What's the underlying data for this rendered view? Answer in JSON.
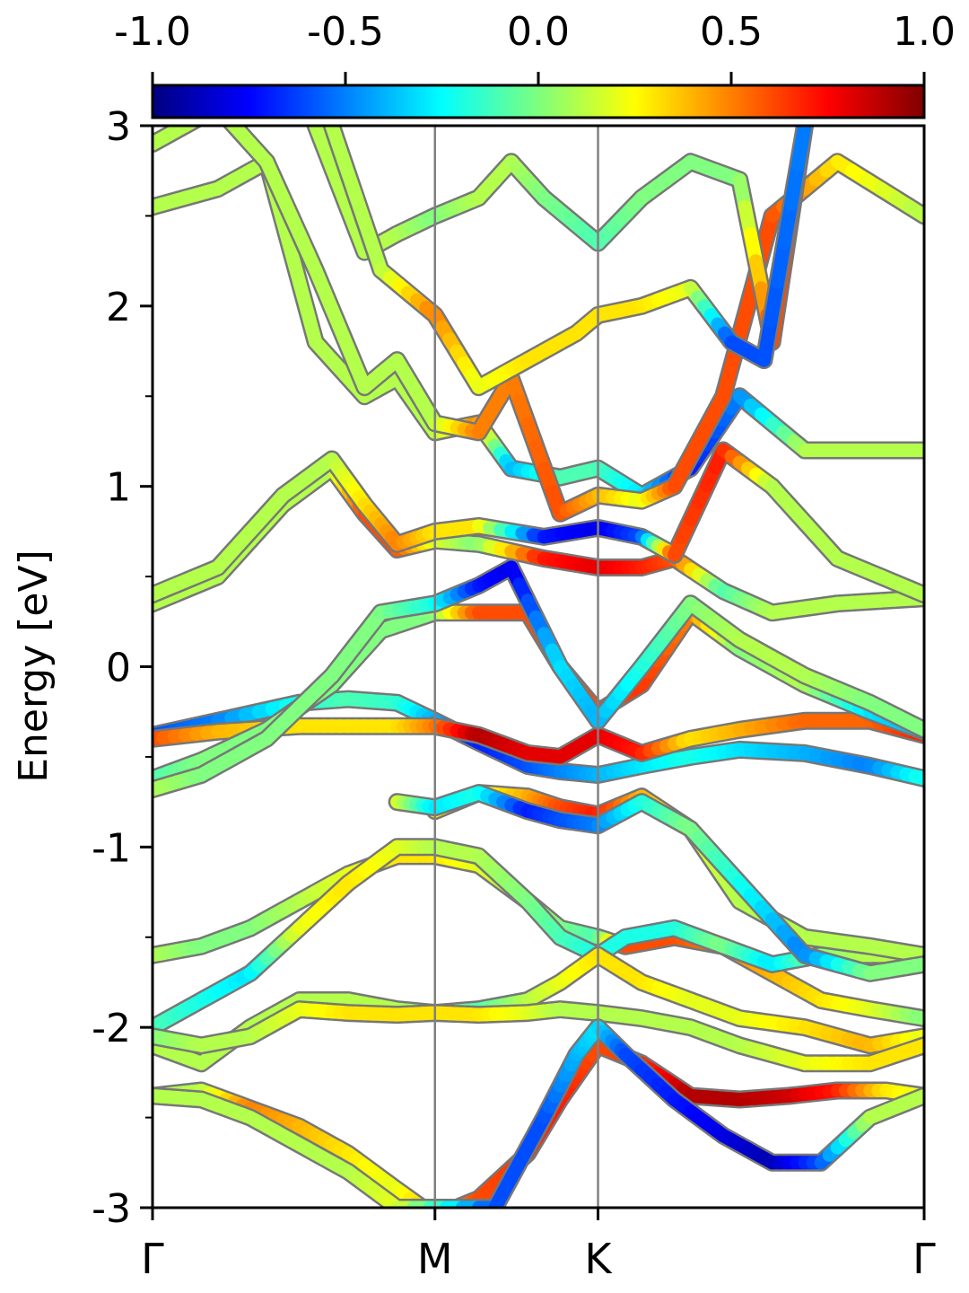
{
  "chart_data": {
    "type": "line",
    "ylabel": "Energy [eV]",
    "ylim": [
      -3,
      3
    ],
    "yticks": [
      {
        "value": 3,
        "label": "3"
      },
      {
        "value": 2,
        "label": "2"
      },
      {
        "value": 1,
        "label": "1"
      },
      {
        "value": 0,
        "label": "0"
      },
      {
        "value": -1,
        "label": "-1"
      },
      {
        "value": -2,
        "label": "-2"
      },
      {
        "value": -3,
        "label": "-3"
      }
    ],
    "yminor_step": 0.5,
    "xlim": [
      0,
      4.732
    ],
    "kpoints": [
      {
        "label": "Γ",
        "x": 0
      },
      {
        "label": "M",
        "x": 1.732
      },
      {
        "label": "K",
        "x": 2.732
      },
      {
        "label": "Γ",
        "x": 4.732
      }
    ],
    "colorbar": {
      "min": -1.0,
      "max": 1.0,
      "colormap": "jet",
      "ticks": [
        {
          "value": -1.0,
          "label": "-1.0"
        },
        {
          "value": -0.5,
          "label": "-0.5"
        },
        {
          "value": 0.0,
          "label": "0.0"
        },
        {
          "value": 0.5,
          "label": "0.5"
        },
        {
          "value": 1.0,
          "label": "1.0"
        }
      ]
    },
    "series": [
      {
        "x": [
          0,
          0.4,
          0.9,
          1.2,
          1.5,
          1.732,
          2.0,
          2.3,
          2.5,
          2.732,
          3.0,
          3.3,
          3.6,
          4.0,
          4.4,
          4.732
        ],
        "y": [
          -0.38,
          -0.3,
          -0.2,
          -0.18,
          -0.2,
          -0.3,
          -0.42,
          -0.55,
          -0.58,
          -0.6,
          -0.55,
          -0.5,
          -0.46,
          -0.48,
          -0.55,
          -0.62
        ],
        "c": [
          -0.6,
          -0.5,
          -0.2,
          -0.1,
          -0.15,
          -0.4,
          -0.7,
          -0.6,
          -0.5,
          -0.4,
          -0.3,
          -0.2,
          -0.3,
          -0.4,
          -0.5,
          -0.2
        ]
      },
      {
        "x": [
          0,
          0.4,
          0.9,
          1.2,
          1.5,
          1.732,
          2.0,
          2.3,
          2.5,
          2.732,
          3.0,
          3.3,
          3.6,
          4.0,
          4.4,
          4.732
        ],
        "y": [
          -0.4,
          -0.36,
          -0.33,
          -0.33,
          -0.33,
          -0.33,
          -0.38,
          -0.48,
          -0.5,
          -0.38,
          -0.48,
          -0.4,
          -0.35,
          -0.3,
          -0.3,
          -0.38
        ],
        "c": [
          0.6,
          0.4,
          0.3,
          0.3,
          0.3,
          0.5,
          0.9,
          0.8,
          0.8,
          0.8,
          0.7,
          0.3,
          0.4,
          0.55,
          0.55,
          0.7
        ]
      },
      {
        "x": [
          0,
          0.3,
          0.7,
          1.1,
          1.4,
          1.732,
          2.0,
          2.3,
          2.5,
          2.732,
          3.0,
          3.3,
          3.6,
          4.0,
          4.4,
          4.732
        ],
        "y": [
          -0.62,
          -0.52,
          -0.35,
          -0.1,
          0.2,
          0.3,
          0.3,
          0.3,
          0.0,
          -0.25,
          -0.1,
          0.3,
          0.1,
          -0.1,
          -0.25,
          -0.36
        ],
        "c": [
          -0.1,
          0.0,
          0.0,
          0.0,
          0.0,
          0.0,
          0.6,
          0.6,
          0.6,
          0.6,
          0.65,
          0.5,
          0.0,
          0.1,
          -0.3,
          -0.4
        ]
      },
      {
        "x": [
          0,
          0.3,
          0.7,
          1.1,
          1.4,
          1.732,
          2.0,
          2.2,
          2.5,
          2.732,
          3.0,
          3.3,
          3.6,
          4.0,
          4.4,
          4.732
        ],
        "y": [
          -0.68,
          -0.6,
          -0.4,
          -0.05,
          0.3,
          0.35,
          0.45,
          0.55,
          0.0,
          -0.3,
          0.0,
          0.35,
          0.15,
          -0.05,
          -0.2,
          -0.35
        ],
        "c": [
          0.1,
          0.0,
          0.0,
          0.0,
          0.0,
          -0.2,
          -0.7,
          -0.8,
          -0.3,
          -0.4,
          -0.2,
          0.0,
          0.1,
          0.1,
          0.0,
          0.0
        ]
      },
      {
        "x": [
          0,
          0.4,
          0.8,
          1.1,
          1.3,
          1.5,
          1.732,
          2.0,
          2.4,
          2.732,
          3.0,
          3.2,
          3.5,
          3.8,
          4.2,
          4.732
        ],
        "y": [
          0.35,
          0.5,
          0.9,
          1.1,
          0.85,
          0.65,
          0.7,
          0.68,
          0.6,
          0.55,
          0.55,
          0.6,
          0.42,
          0.3,
          0.35,
          0.38
        ],
        "c": [
          0.1,
          0.1,
          0.1,
          0.1,
          0.6,
          0.6,
          0.2,
          0.0,
          0.7,
          0.8,
          0.7,
          0.6,
          -0.1,
          0.1,
          0.1,
          0.1
        ]
      },
      {
        "x": [
          0,
          0.4,
          0.8,
          1.1,
          1.3,
          1.5,
          1.732,
          2.0,
          2.4,
          2.732,
          3.0,
          3.2,
          3.5,
          3.8,
          4.2,
          4.732
        ],
        "y": [
          0.4,
          0.55,
          0.95,
          1.15,
          0.9,
          0.68,
          0.75,
          0.78,
          0.72,
          0.77,
          0.72,
          0.62,
          1.2,
          1.0,
          0.6,
          0.4
        ],
        "c": [
          0.1,
          0.1,
          0.1,
          0.1,
          0.3,
          0.5,
          0.3,
          0.3,
          -0.7,
          -0.8,
          -0.6,
          0.6,
          0.7,
          0.1,
          0.1,
          0.1
        ]
      },
      {
        "x": [
          0,
          0.4,
          0.7,
          1.0,
          1.3,
          1.5,
          1.732,
          2.0,
          2.2,
          2.5,
          2.732,
          3.0,
          3.3,
          3.6,
          4.0,
          4.732
        ],
        "y": [
          2.55,
          2.65,
          2.8,
          1.8,
          1.5,
          1.6,
          1.3,
          1.35,
          1.1,
          1.05,
          1.1,
          0.95,
          1.1,
          1.5,
          1.2,
          1.2
        ],
        "c": [
          0.1,
          0.1,
          0.1,
          0.1,
          0.1,
          0.1,
          0.1,
          0.5,
          -0.4,
          -0.1,
          -0.1,
          -0.3,
          -0.7,
          -0.5,
          0.1,
          0.1
        ]
      },
      {
        "x": [
          0,
          0.4,
          0.7,
          1.0,
          1.3,
          1.5,
          1.732,
          2.0,
          2.2,
          2.5,
          2.732,
          3.0,
          3.2,
          3.5,
          3.8,
          4.2,
          4.732
        ],
        "y": [
          2.9,
          3.1,
          2.8,
          2.2,
          1.55,
          1.7,
          1.35,
          1.3,
          1.6,
          0.85,
          0.95,
          0.92,
          1.0,
          1.5,
          2.5,
          2.8,
          2.5
        ],
        "c": [
          0.1,
          0.1,
          0.1,
          0.1,
          0.1,
          0.1,
          0.1,
          0.5,
          0.5,
          0.6,
          0.4,
          0.2,
          0.6,
          0.6,
          0.6,
          0.3,
          0.1
        ]
      },
      {
        "x": [
          1.0,
          1.3,
          1.5,
          1.732,
          2.0,
          2.2,
          2.4,
          2.732,
          3.0,
          3.3,
          3.6,
          3.8,
          4.0
        ],
        "y": [
          3.0,
          2.3,
          2.4,
          2.5,
          2.6,
          2.8,
          2.6,
          2.35,
          2.6,
          2.8,
          2.7,
          1.8,
          3.0
        ],
        "c": [
          0.1,
          0.1,
          0.1,
          0.0,
          0.1,
          0.1,
          0.0,
          -0.1,
          0.0,
          0.0,
          0.0,
          0.6,
          0.6
        ]
      },
      {
        "x": [
          1.1,
          1.4,
          1.732,
          2.0,
          2.3,
          2.6,
          2.732,
          3.0,
          3.3,
          3.55,
          3.75,
          4.0
        ],
        "y": [
          3.0,
          2.2,
          1.95,
          1.55,
          1.7,
          1.85,
          1.95,
          2.0,
          2.1,
          1.8,
          1.7,
          3.0
        ],
        "c": [
          0.1,
          0.1,
          0.5,
          0.2,
          0.3,
          0.3,
          0.3,
          0.3,
          0.2,
          -0.6,
          -0.6,
          -0.5
        ]
      },
      {
        "x": [
          0,
          0.3,
          0.6,
          0.9,
          1.2,
          1.5,
          1.732,
          2.0,
          2.3,
          2.5,
          2.732,
          2.9,
          3.2,
          3.5,
          3.8,
          4.1,
          4.4,
          4.732
        ],
        "y": [
          -1.6,
          -1.55,
          -1.45,
          -1.3,
          -1.15,
          -1.05,
          -1.05,
          -1.1,
          -1.3,
          -1.45,
          -1.5,
          -1.55,
          -1.5,
          -1.55,
          -1.7,
          -1.85,
          -1.9,
          -1.95
        ],
        "c": [
          0.1,
          0.0,
          0.0,
          0.1,
          0.2,
          0.3,
          0.3,
          0.2,
          0.1,
          0.0,
          -0.1,
          0.6,
          0.6,
          0.5,
          0.4,
          0.3,
          0.2,
          0.0
        ]
      },
      {
        "x": [
          0,
          0.3,
          0.6,
          0.9,
          1.2,
          1.5,
          1.732,
          2.0,
          2.3,
          2.5,
          2.732,
          2.9,
          3.2,
          3.5,
          3.8,
          4.1,
          4.4,
          4.732
        ],
        "y": [
          -2.0,
          -1.85,
          -1.7,
          -1.45,
          -1.2,
          -1.0,
          -1.0,
          -1.05,
          -1.3,
          -1.5,
          -1.6,
          -1.5,
          -1.45,
          -1.55,
          -1.65,
          -1.6,
          -1.6,
          -1.6
        ],
        "c": [
          -0.1,
          -0.2,
          -0.3,
          0.2,
          0.3,
          0.2,
          0.1,
          0.1,
          0.0,
          -0.1,
          -0.2,
          -0.2,
          -0.2,
          0.0,
          -0.3,
          0.0,
          0.1,
          0.1
        ]
      },
      {
        "x": [
          0,
          0.3,
          0.6,
          0.9,
          1.2,
          1.5,
          1.732,
          2.0,
          2.3,
          2.5,
          2.732,
          3.0,
          3.3,
          3.6,
          4.0,
          4.4,
          4.732
        ],
        "y": [
          -2.1,
          -2.2,
          -2.0,
          -1.85,
          -1.85,
          -1.9,
          -1.92,
          -1.9,
          -1.85,
          -1.75,
          -1.6,
          -1.75,
          -1.85,
          -1.95,
          -2.0,
          -2.1,
          -2.05
        ],
        "c": [
          0.1,
          0.1,
          0.1,
          0.1,
          0.1,
          0.1,
          0.0,
          -0.1,
          0.1,
          0.2,
          0.3,
          0.3,
          0.2,
          0.2,
          0.3,
          0.4,
          0.2
        ]
      },
      {
        "x": [
          0,
          0.3,
          0.6,
          0.9,
          1.2,
          1.5,
          1.732,
          2.0,
          2.3,
          2.5,
          2.732,
          3.0,
          3.3,
          3.6,
          4.0,
          4.4,
          4.732
        ],
        "y": [
          -2.05,
          -2.1,
          -2.05,
          -1.9,
          -1.92,
          -1.93,
          -1.92,
          -1.93,
          -1.92,
          -1.9,
          -1.92,
          -1.95,
          -2.0,
          -2.1,
          -2.2,
          -2.2,
          -2.1
        ],
        "c": [
          0.0,
          0.1,
          0.1,
          0.2,
          0.3,
          0.3,
          0.3,
          0.3,
          0.2,
          0.1,
          0.1,
          0.1,
          0.1,
          0.1,
          0.2,
          0.3,
          0.3
        ]
      },
      {
        "x": [
          0,
          0.3,
          0.6,
          0.9,
          1.2,
          1.5,
          1.732,
          2.0,
          2.3,
          2.5,
          2.732,
          3.0,
          3.3,
          3.6,
          3.9,
          4.2,
          4.5,
          4.732
        ],
        "y": [
          -2.38,
          -2.35,
          -2.45,
          -2.55,
          -2.7,
          -2.9,
          -3.05,
          -2.95,
          -2.7,
          -2.4,
          -2.1,
          -2.2,
          -2.38,
          -2.4,
          -2.38,
          -2.35,
          -2.35,
          -2.38
        ],
        "c": [
          0.1,
          0.1,
          0.5,
          0.4,
          0.3,
          0.2,
          0.4,
          0.6,
          0.65,
          0.7,
          0.6,
          0.65,
          0.9,
          0.9,
          0.85,
          0.7,
          0.3,
          0.2
        ]
      },
      {
        "x": [
          0,
          0.3,
          0.6,
          0.9,
          1.2,
          1.5,
          2.1,
          2.4,
          2.6,
          2.732,
          2.9,
          3.2,
          3.5,
          3.8,
          4.1,
          4.4,
          4.732
        ],
        "y": [
          -2.38,
          -2.4,
          -2.5,
          -2.65,
          -2.8,
          -3.0,
          -3.0,
          -2.5,
          -2.15,
          -2.0,
          -2.15,
          -2.4,
          -2.6,
          -2.75,
          -2.75,
          -2.5,
          -2.38
        ],
        "c": [
          0.1,
          0.1,
          0.1,
          0.1,
          0.1,
          0.2,
          -0.6,
          -0.6,
          -0.4,
          -0.3,
          -0.6,
          -0.7,
          -0.8,
          -0.9,
          -0.6,
          0.1,
          0.1
        ]
      },
      {
        "x": [
          1.732,
          2.0,
          2.3,
          2.5,
          2.732,
          3.0,
          3.3,
          3.6,
          4.0,
          4.4,
          4.732
        ],
        "y": [
          -0.8,
          -0.7,
          -0.72,
          -0.78,
          -0.82,
          -0.72,
          -0.9,
          -1.3,
          -1.5,
          -1.55,
          -1.6
        ],
        "c": [
          0.3,
          0.2,
          0.4,
          0.6,
          0.7,
          0.4,
          0.2,
          0.1,
          0.1,
          0.1,
          0.1
        ]
      },
      {
        "x": [
          1.5,
          1.732,
          2.0,
          2.3,
          2.5,
          2.732,
          3.0,
          3.3,
          3.6,
          4.0,
          4.4,
          4.732
        ],
        "y": [
          -0.75,
          -0.78,
          -0.7,
          -0.8,
          -0.85,
          -0.88,
          -0.75,
          -0.9,
          -1.2,
          -1.6,
          -1.7,
          -1.65
        ],
        "c": [
          0.2,
          -0.3,
          -0.2,
          -0.7,
          -0.6,
          -0.5,
          -0.2,
          0.0,
          -0.2,
          -0.5,
          0.0,
          0.0
        ]
      }
    ]
  }
}
